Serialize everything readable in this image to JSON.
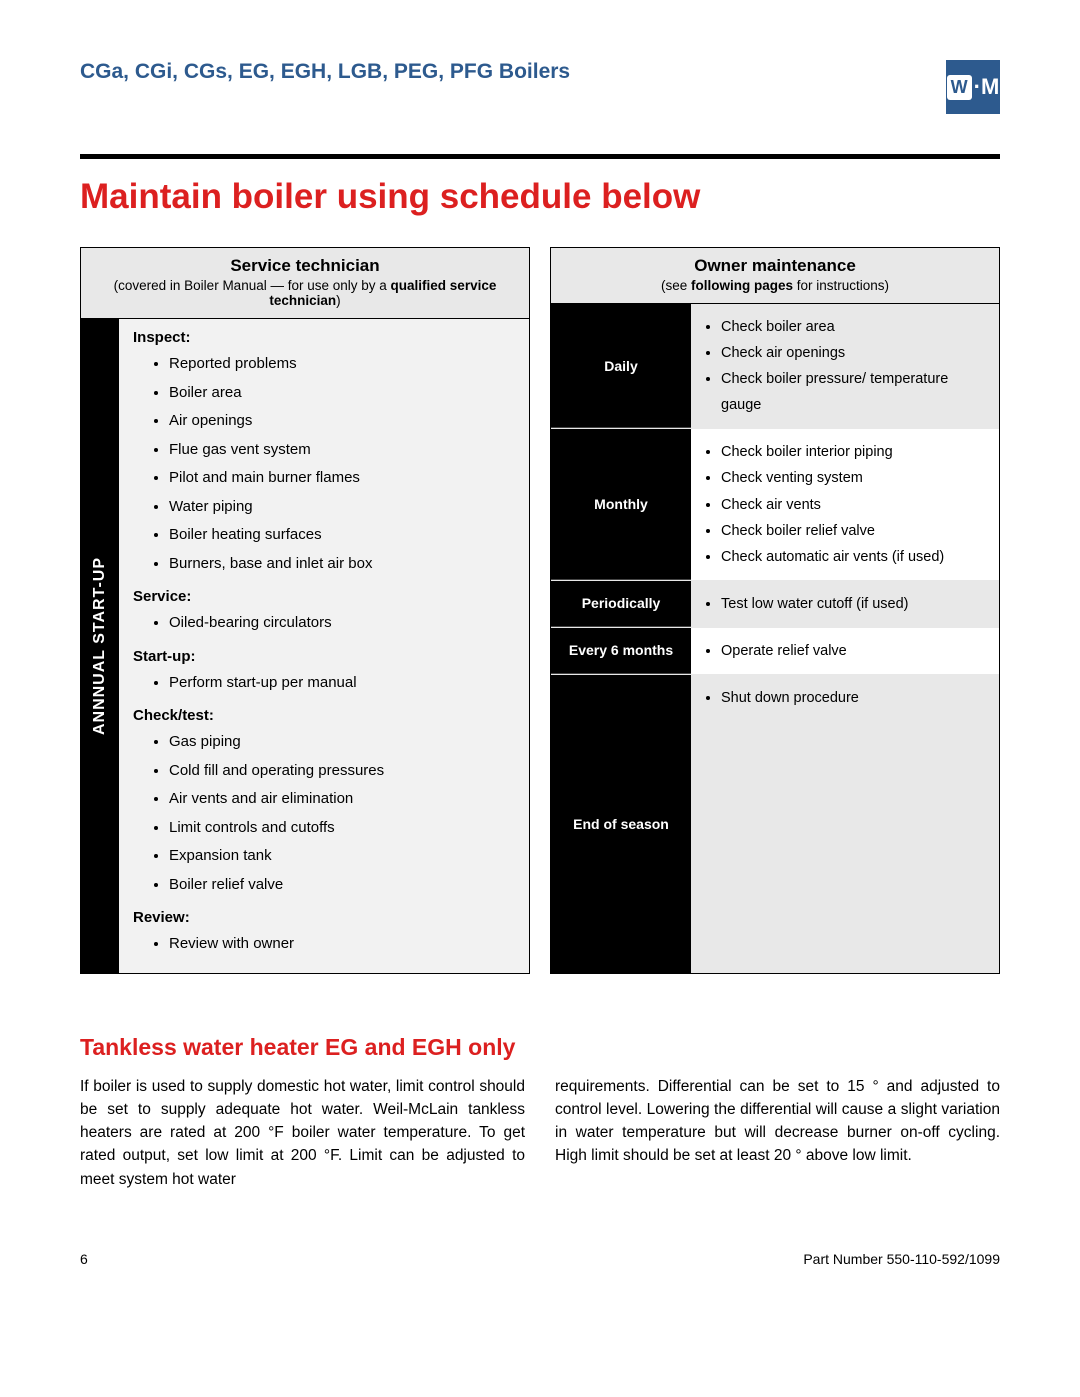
{
  "header": {
    "product_line": "CGa, CGi, CGs, EG, EGH, LGB, PEG, PFG Boilers",
    "logo_text": "W·M",
    "logo_bg": "#2d5a8e"
  },
  "title": "Maintain boiler using schedule below",
  "service_table": {
    "head_title": "Service technician",
    "head_sub_pre": "(covered in Boiler Manual — for use only by a",
    "head_sub_bold": "qualified service technician",
    "head_sub_post": ")",
    "side_label": "Annnual start-up",
    "sections": [
      {
        "label": "Inspect:",
        "items": [
          "Reported problems",
          "Boiler area",
          "Air openings",
          "Flue gas vent system",
          "Pilot and main burner flames",
          "Water piping",
          "Boiler heating surfaces",
          "Burners, base and inlet air box"
        ]
      },
      {
        "label": "Service:",
        "items": [
          "Oiled-bearing circulators"
        ]
      },
      {
        "label": "Start-up:",
        "items": [
          "Perform start-up per manual"
        ]
      },
      {
        "label": "Check/test:",
        "items": [
          "Gas piping",
          "Cold fill and operating pressures",
          "Air vents and air elimination",
          "Limit controls and cutoffs",
          "Expansion tank",
          "Boiler relief valve"
        ]
      },
      {
        "label": "Review:",
        "items": [
          "Review with owner"
        ]
      }
    ]
  },
  "owner_table": {
    "head_title": "Owner maintenance",
    "head_sub_pre": "(see ",
    "head_sub_bold": "following pages",
    "head_sub_post": " for instructions)",
    "rows": [
      {
        "label": "Daily",
        "alt": true,
        "items": [
          "Check boiler area",
          "Check air openings",
          "Check boiler pressure/ temperature gauge"
        ]
      },
      {
        "label": "Monthly",
        "alt": false,
        "items": [
          "Check boiler interior piping",
          "Check venting system",
          "Check air vents",
          "Check boiler relief valve",
          "Check automatic air vents (if used)"
        ]
      },
      {
        "label": "Periodically",
        "alt": true,
        "items": [
          "Test low water cutoff (if used)"
        ]
      },
      {
        "label": "Every 6 months",
        "alt": false,
        "items": [
          "Operate relief valve"
        ]
      },
      {
        "label": "End of season",
        "alt": true,
        "tall": true,
        "items": [
          "Shut down procedure"
        ]
      }
    ]
  },
  "tankless": {
    "title": "Tankless water heater EG and EGH only",
    "col1": "If boiler is used to supply domestic hot water, limit control should be set to supply adequate hot water. Weil-McLain tankless heaters are rated at 200 °F boiler water temperature. To get rated output, set low limit at 200 °F. Limit can be adjusted to meet system hot water",
    "col2": "requirements. Differential can be set to 15 ° and adjusted to control level. Lowering the differential will cause a slight variation in water temperature but will decrease burner on-off cycling. High limit should be set at least 20 ° above low limit."
  },
  "footer": {
    "page": "6",
    "part": "Part Number 550-110-592/1099"
  },
  "colors": {
    "accent_red": "#dc2020",
    "accent_blue": "#2d5a8e"
  }
}
